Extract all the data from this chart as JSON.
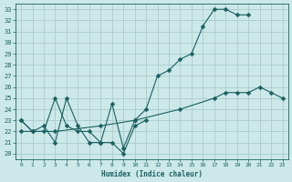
{
  "xlabel": "Humidex (Indice chaleur)",
  "bg_color": "#cce8e8",
  "grid_color": "#aacccc",
  "line_color": "#1a6060",
  "xlim": [
    -0.5,
    23.5
  ],
  "ylim": [
    19.5,
    33.5
  ],
  "xticks": [
    0,
    1,
    2,
    3,
    4,
    5,
    6,
    7,
    8,
    9,
    10,
    11,
    12,
    13,
    14,
    15,
    16,
    17,
    18,
    19,
    20,
    21,
    22,
    23
  ],
  "yticks": [
    20,
    21,
    22,
    23,
    24,
    25,
    26,
    27,
    28,
    29,
    30,
    31,
    32,
    33
  ],
  "line1_x": [
    0,
    1,
    2,
    3,
    4,
    5,
    6,
    7,
    8,
    9,
    10,
    11,
    12,
    13,
    14,
    15,
    16,
    17,
    18,
    19,
    20
  ],
  "line1_y": [
    23,
    22,
    22.5,
    21,
    25,
    22.5,
    21,
    21,
    24.5,
    20.5,
    23,
    24,
    27,
    27.5,
    28.5,
    29,
    31.5,
    33,
    33,
    32.5,
    32.5
  ],
  "line2_x": [
    0,
    1,
    2,
    3,
    4,
    5,
    6,
    7,
    8,
    9,
    10,
    11
  ],
  "line2_y": [
    23,
    22,
    22,
    25,
    22.5,
    22,
    22,
    21,
    21,
    20,
    22.5,
    23
  ],
  "line3_x": [
    0,
    3,
    7,
    10,
    14,
    17,
    18,
    19,
    20,
    21,
    22,
    23
  ],
  "line3_y": [
    22,
    22,
    22.5,
    23,
    24,
    25,
    25.5,
    25.5,
    25.5,
    26,
    25.5,
    25
  ],
  "marker_size": 2.5
}
